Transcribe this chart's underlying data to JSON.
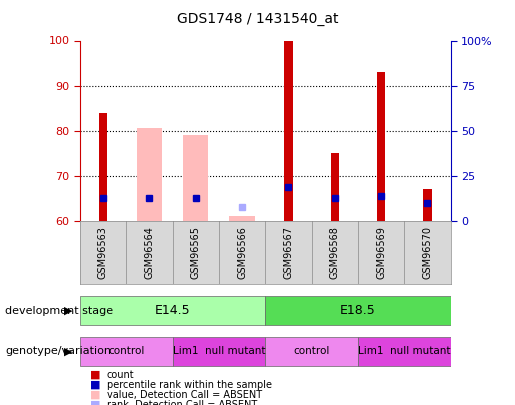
{
  "title": "GDS1748 / 1431540_at",
  "samples": [
    "GSM96563",
    "GSM96564",
    "GSM96565",
    "GSM96566",
    "GSM96567",
    "GSM96568",
    "GSM96569",
    "GSM96570"
  ],
  "bar_bottom": 60,
  "count_values": [
    84,
    null,
    null,
    null,
    100,
    75,
    93,
    67
  ],
  "absent_value_bars": [
    null,
    80.5,
    79,
    61,
    null,
    null,
    null,
    null
  ],
  "absent_rank_dots": [
    null,
    null,
    null,
    63,
    null,
    null,
    null,
    null
  ],
  "percentile_rank_dots": [
    65,
    65,
    65,
    null,
    67.5,
    65,
    65.5,
    64
  ],
  "ylim": [
    60,
    100
  ],
  "yticks": [
    60,
    70,
    80,
    90,
    100
  ],
  "right_ytick_labels": [
    "0",
    "25",
    "50",
    "75",
    "100%"
  ],
  "development_stage_labels": [
    {
      "label": "E14.5",
      "start": 0,
      "end": 4
    },
    {
      "label": "E18.5",
      "start": 4,
      "end": 8
    }
  ],
  "dev_stage_colors": [
    "#aaffaa",
    "#55dd55"
  ],
  "genotype_labels": [
    {
      "label": "control",
      "start": 0,
      "end": 2,
      "color": "#ee88ee"
    },
    {
      "label": "Lim1  null mutant",
      "start": 2,
      "end": 4,
      "color": "#dd44dd"
    },
    {
      "label": "control",
      "start": 4,
      "end": 6,
      "color": "#ee88ee"
    },
    {
      "label": "Lim1  null mutant",
      "start": 6,
      "end": 8,
      "color": "#dd44dd"
    }
  ],
  "left_axis_color": "#cc0000",
  "right_axis_color": "#0000bb",
  "absent_bar_color": "#ffbbbb",
  "absent_rank_color": "#aaaaff",
  "percentile_dot_color": "#0000bb",
  "count_bar_color": "#cc0000",
  "background_color": "#ffffff",
  "label_fontsize": 8,
  "tick_fontsize": 8,
  "title_fontsize": 10
}
